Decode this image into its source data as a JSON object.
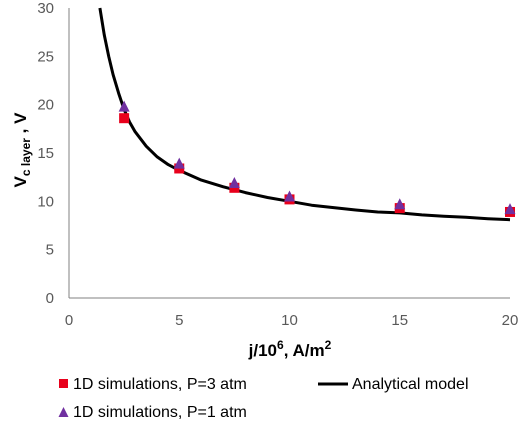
{
  "chart_data": {
    "type": "scatter",
    "title": "",
    "xlim": [
      0,
      20
    ],
    "ylim": [
      0,
      30
    ],
    "x_ticks": [
      0,
      5,
      10,
      15,
      20
    ],
    "y_ticks": [
      0,
      5,
      10,
      15,
      20,
      25,
      30
    ],
    "grid": false,
    "legend_position": "bottom",
    "x_label": {
      "main": "j/10",
      "sup": "6",
      "rest": ", A/m",
      "sup2": "2"
    },
    "y_label": {
      "main": "V",
      "sub": "c layer",
      "rest": " , V"
    },
    "series": [
      {
        "name": "1D simulations, P=3 atm",
        "marker": "square",
        "color": "#e8001c",
        "x": [
          2.5,
          5,
          7.5,
          10,
          15,
          20
        ],
        "y": [
          18.6,
          13.4,
          11.4,
          10.2,
          9.3,
          8.9
        ]
      },
      {
        "name": "1D simulations, P=1 atm",
        "marker": "triangle",
        "color": "#7030a0",
        "x": [
          2.5,
          5,
          7.5,
          10,
          15,
          20
        ],
        "y": [
          19.8,
          13.9,
          11.9,
          10.5,
          9.7,
          9.2
        ]
      },
      {
        "name": "Analytical model",
        "marker": "line",
        "color": "#000000",
        "x": [
          1.4,
          1.6,
          1.8,
          2.0,
          2.25,
          2.5,
          2.75,
          3.0,
          3.5,
          4.0,
          4.5,
          5.0,
          6.0,
          7.0,
          7.5,
          8.0,
          9.0,
          10.0,
          11.0,
          12.0,
          13.0,
          14.0,
          15.0,
          16.0,
          17.0,
          18.0,
          19.0,
          20.0
        ],
        "y": [
          30.0,
          27.2,
          25.0,
          23.1,
          21.2,
          19.5,
          18.2,
          17.2,
          15.7,
          14.6,
          13.8,
          13.2,
          12.2,
          11.5,
          11.2,
          10.9,
          10.4,
          10.0,
          9.6,
          9.35,
          9.1,
          8.9,
          8.8,
          8.6,
          8.45,
          8.35,
          8.2,
          8.1
        ]
      }
    ]
  }
}
